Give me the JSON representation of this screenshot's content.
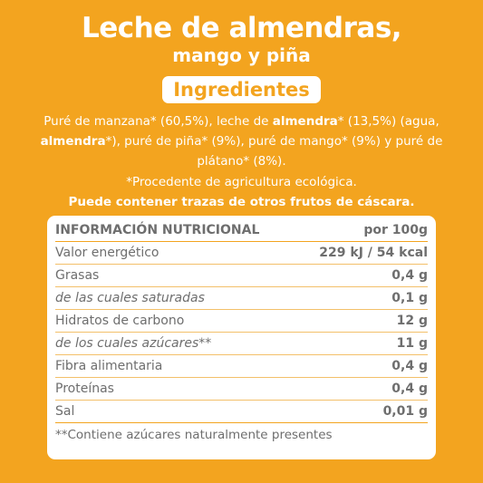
{
  "product": {
    "title": "Leche de almendras,",
    "subtitle": "mango y piña"
  },
  "ingredients": {
    "heading": "Ingredientes",
    "parts": [
      {
        "text": "Puré de manzana* (60,5%), leche de ",
        "bold": false
      },
      {
        "text": "almendra",
        "bold": true
      },
      {
        "text": "* (13,5%) (agua, ",
        "bold": false
      },
      {
        "text": "almendra",
        "bold": true
      },
      {
        "text": "*), puré de piña* (9%), puré de mango* (9%) y puré de plátano* (8%).",
        "bold": false
      }
    ],
    "organic_note": "*Procedente de agricultura ecológica.",
    "traces": "Puede contener trazas de otros frutos de cáscara."
  },
  "nutrition": {
    "header_label": "INFORMACIÓN NUTRICIONAL",
    "header_value": "por 100g",
    "rows": [
      {
        "label": "Valor energético",
        "value": "229 kJ / 54 kcal",
        "italic": false
      },
      {
        "label": "Grasas",
        "value": "0,4 g",
        "italic": false
      },
      {
        "label": "de las cuales saturadas",
        "value": "0,1 g",
        "italic": true
      },
      {
        "label": "Hidratos de carbono",
        "value": "12 g",
        "italic": false
      },
      {
        "label": "de los cuales azúcares**",
        "value": "11 g",
        "italic": true
      },
      {
        "label": "Fibra alimentaria",
        "value": "0,4 g",
        "italic": false
      },
      {
        "label": "Proteínas",
        "value": "0,4 g",
        "italic": false
      },
      {
        "label": "Sal",
        "value": "0,01 g",
        "italic": false
      }
    ],
    "footnote": "**Contiene azúcares naturalmente presentes"
  },
  "colors": {
    "background": "#f3a41f",
    "panel": "#ffffff",
    "text_dark": "#6e6e6e"
  }
}
